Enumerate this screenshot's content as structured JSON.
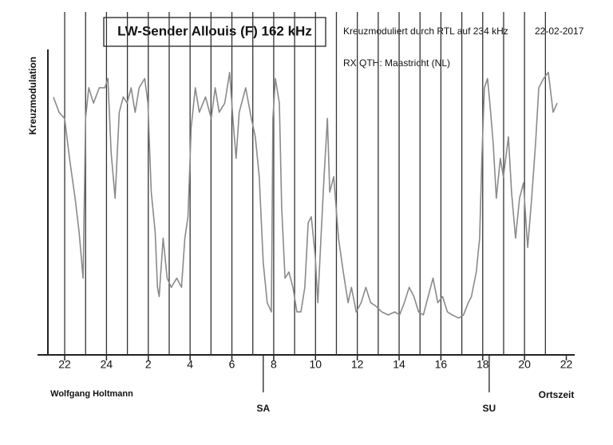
{
  "chart_data": {
    "type": "line",
    "title": "LW-Sender Allouis (F)  162 kHz",
    "subtitle": "Kreuzmoduliert durch RTL auf 234 kHz",
    "date": "22-02-2017",
    "note": "RX QTH: Maastricht (NL)",
    "ylabel": "Kreuzmodulation",
    "xlabel": "Ortszeit",
    "author": "Wolfgang Holtmann",
    "color": "#8a8a8a",
    "xlim": [
      20.7,
      46.4
    ],
    "ylim": [
      0,
      100
    ],
    "xticks": [
      22,
      24,
      {
        "value": 26,
        "label": "2"
      },
      {
        "value": 28,
        "label": "4"
      },
      {
        "value": 30,
        "label": "6"
      },
      {
        "value": 32,
        "label": "8"
      },
      {
        "value": 34,
        "label": "10"
      },
      {
        "value": 36,
        "label": "12"
      },
      {
        "value": 38,
        "label": "14"
      },
      {
        "value": 40,
        "label": "16"
      },
      {
        "value": 42,
        "label": "18"
      },
      {
        "value": 44,
        "label": "20"
      },
      {
        "value": 46,
        "label": "22"
      }
    ],
    "xgrid_ticks": [
      22,
      23,
      24,
      25,
      26,
      27,
      28,
      29,
      30,
      31,
      32,
      33,
      34,
      35,
      36,
      37,
      38,
      39,
      40,
      41,
      42,
      43,
      44,
      45
    ],
    "annotations": [
      {
        "text": "SA",
        "x": 31.5
      },
      {
        "text": "SU",
        "x": 42.31
      }
    ],
    "x": [
      21.46,
      21.73,
      22.0,
      22.23,
      22.5,
      22.69,
      22.88,
      23.0,
      23.15,
      23.38,
      23.65,
      23.92,
      24.07,
      24.22,
      24.41,
      24.61,
      24.8,
      24.99,
      25.18,
      25.37,
      25.56,
      25.83,
      25.98,
      26.14,
      26.33,
      26.44,
      26.52,
      26.71,
      26.9,
      27.1,
      27.36,
      27.59,
      27.75,
      27.9,
      28.05,
      28.25,
      28.44,
      28.74,
      29.01,
      29.2,
      29.39,
      29.66,
      29.89,
      30.05,
      30.2,
      30.35,
      30.66,
      30.93,
      31.12,
      31.31,
      31.5,
      31.69,
      31.89,
      31.96,
      32.08,
      32.27,
      32.38,
      32.54,
      32.73,
      32.92,
      33.11,
      33.3,
      33.49,
      33.65,
      33.8,
      33.99,
      34.11,
      34.26,
      34.41,
      34.57,
      34.68,
      34.87,
      35.1,
      35.33,
      35.56,
      35.72,
      35.95,
      36.18,
      36.41,
      36.64,
      36.87,
      37.17,
      37.48,
      37.79,
      38.02,
      38.25,
      38.48,
      38.71,
      38.93,
      39.16,
      39.39,
      39.62,
      39.85,
      40.08,
      40.31,
      40.54,
      40.85,
      41.08,
      41.31,
      41.46,
      41.69,
      41.85,
      41.96,
      42.08,
      42.23,
      42.34,
      42.5,
      42.65,
      42.84,
      42.99,
      43.23,
      43.38,
      43.57,
      43.76,
      43.95,
      44.15,
      44.34,
      44.53,
      44.68,
      44.91,
      45.14,
      45.37,
      45.56
    ],
    "values": [
      84,
      79,
      77,
      64,
      51,
      40,
      25,
      77,
      87,
      82,
      87,
      87,
      90,
      66,
      51,
      79,
      84,
      82,
      87,
      79,
      87,
      90,
      82,
      53,
      40,
      22,
      19,
      38,
      25,
      22,
      25,
      22,
      38,
      45,
      74,
      87,
      79,
      84,
      77,
      87,
      79,
      82,
      92,
      77,
      64,
      79,
      87,
      77,
      71,
      58,
      30,
      17,
      14,
      77,
      90,
      82,
      48,
      25,
      27,
      22,
      14,
      14,
      22,
      43,
      45,
      32,
      17,
      38,
      58,
      77,
      53,
      58,
      38,
      27,
      17,
      22,
      14,
      17,
      22,
      17,
      16,
      14,
      13,
      14,
      13,
      17,
      22,
      19,
      14,
      13,
      19,
      25,
      17,
      19,
      14,
      13,
      12,
      13,
      17,
      19,
      27,
      38,
      64,
      87,
      90,
      82,
      69,
      51,
      64,
      58,
      71,
      53,
      38,
      51,
      56,
      35,
      51,
      69,
      87,
      90,
      92,
      79,
      82
    ]
  }
}
